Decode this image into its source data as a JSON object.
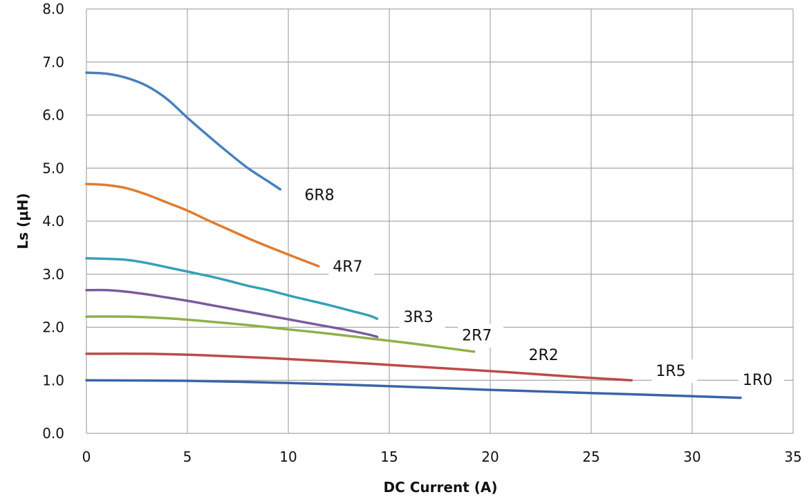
{
  "chart_data": {
    "type": "line",
    "title": "",
    "xlabel": "DC Current (A)",
    "ylabel": "Ls (μH)",
    "xlim": [
      0,
      35
    ],
    "ylim": [
      0,
      8
    ],
    "x_ticks": [
      "0",
      "5",
      "10",
      "15",
      "20",
      "25",
      "30",
      "35"
    ],
    "y_ticks": [
      "0.0",
      "1.0",
      "2.0",
      "3.0",
      "4.0",
      "5.0",
      "6.0",
      "7.0",
      "8.0"
    ],
    "grid": true,
    "series": [
      {
        "name": "6R8",
        "color": "#4a7ebf",
        "points": [
          [
            0,
            6.8
          ],
          [
            1,
            6.78
          ],
          [
            2,
            6.7
          ],
          [
            3,
            6.55
          ],
          [
            4,
            6.3
          ],
          [
            5,
            5.95
          ],
          [
            6,
            5.62
          ],
          [
            7,
            5.3
          ],
          [
            8,
            5.0
          ],
          [
            9,
            4.75
          ],
          [
            9.6,
            4.6
          ]
        ]
      },
      {
        "name": "4R7",
        "color": "#e07b2e",
        "points": [
          [
            0,
            4.7
          ],
          [
            1,
            4.68
          ],
          [
            2,
            4.62
          ],
          [
            3,
            4.5
          ],
          [
            4,
            4.35
          ],
          [
            5,
            4.2
          ],
          [
            6,
            4.02
          ],
          [
            7,
            3.85
          ],
          [
            8,
            3.68
          ],
          [
            9,
            3.52
          ],
          [
            10,
            3.37
          ],
          [
            11.5,
            3.15
          ]
        ]
      },
      {
        "name": "3R3",
        "color": "#36a0b8",
        "points": [
          [
            0,
            3.3
          ],
          [
            1,
            3.29
          ],
          [
            2,
            3.27
          ],
          [
            3,
            3.21
          ],
          [
            4,
            3.13
          ],
          [
            5,
            3.05
          ],
          [
            6,
            2.97
          ],
          [
            7,
            2.88
          ],
          [
            8,
            2.78
          ],
          [
            9,
            2.7
          ],
          [
            10,
            2.6
          ],
          [
            11,
            2.51
          ],
          [
            12,
            2.42
          ],
          [
            13,
            2.32
          ],
          [
            14,
            2.22
          ],
          [
            14.4,
            2.16
          ]
        ]
      },
      {
        "name": "2R7",
        "color": "#7a5a9e",
        "points": [
          [
            0,
            2.7
          ],
          [
            1,
            2.7
          ],
          [
            2,
            2.67
          ],
          [
            3,
            2.62
          ],
          [
            4,
            2.56
          ],
          [
            5,
            2.5
          ],
          [
            6,
            2.43
          ],
          [
            7,
            2.36
          ],
          [
            8,
            2.29
          ],
          [
            9,
            2.22
          ],
          [
            10,
            2.15
          ],
          [
            11,
            2.08
          ],
          [
            12,
            2.01
          ],
          [
            13,
            1.94
          ],
          [
            14,
            1.86
          ],
          [
            14.4,
            1.82
          ]
        ]
      },
      {
        "name": "2R2",
        "color": "#8fb04a",
        "points": [
          [
            0,
            2.2
          ],
          [
            2,
            2.2
          ],
          [
            4,
            2.17
          ],
          [
            6,
            2.11
          ],
          [
            8,
            2.04
          ],
          [
            10,
            1.96
          ],
          [
            12,
            1.88
          ],
          [
            14,
            1.79
          ],
          [
            16,
            1.7
          ],
          [
            18,
            1.6
          ],
          [
            19.2,
            1.54
          ]
        ]
      },
      {
        "name": "1R5",
        "color": "#be4a48",
        "points": [
          [
            0,
            1.5
          ],
          [
            3,
            1.5
          ],
          [
            6,
            1.47
          ],
          [
            9,
            1.42
          ],
          [
            12,
            1.36
          ],
          [
            15,
            1.29
          ],
          [
            18,
            1.22
          ],
          [
            21,
            1.15
          ],
          [
            24,
            1.07
          ],
          [
            27,
            1.0
          ]
        ]
      },
      {
        "name": "1R0",
        "color": "#3a64a8",
        "points": [
          [
            0,
            1.0
          ],
          [
            5,
            0.99
          ],
          [
            10,
            0.95
          ],
          [
            15,
            0.89
          ],
          [
            20,
            0.82
          ],
          [
            25,
            0.76
          ],
          [
            30,
            0.7
          ],
          [
            32.4,
            0.67
          ]
        ]
      }
    ],
    "annotations": [
      {
        "text": "6R8",
        "x": 10.8,
        "y": 4.4
      },
      {
        "text": "4R7",
        "x": 12.2,
        "y": 3.05
      },
      {
        "text": "3R3",
        "x": 15.7,
        "y": 2.1
      },
      {
        "text": "2R7",
        "x": 18.6,
        "y": 1.75
      },
      {
        "text": "2R2",
        "x": 21.9,
        "y": 1.38
      },
      {
        "text": "1R5",
        "x": 28.2,
        "y": 1.08
      },
      {
        "text": "1R0",
        "x": 32.5,
        "y": 0.91
      }
    ]
  }
}
